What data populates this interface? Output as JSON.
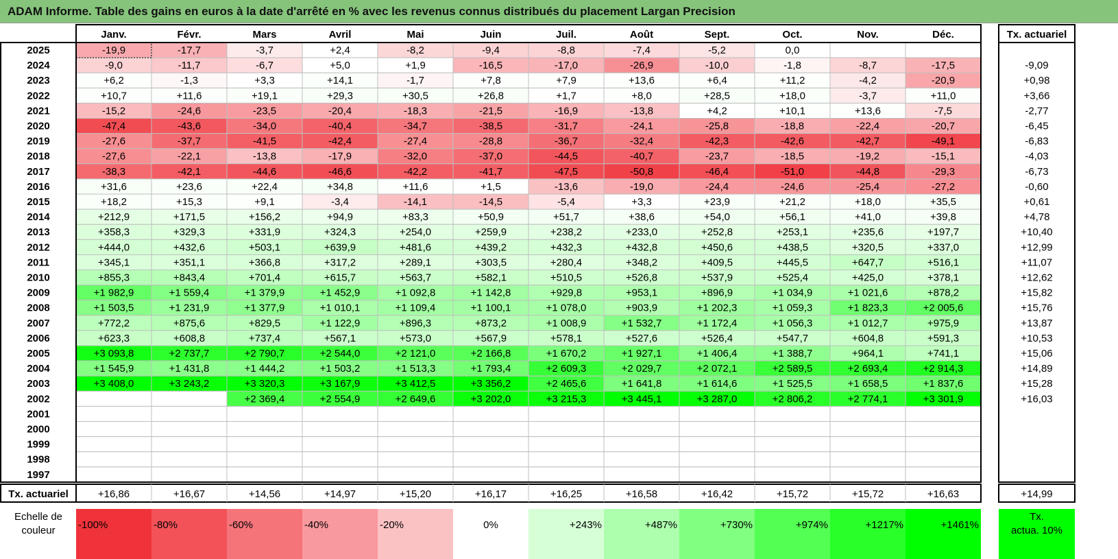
{
  "title": "ADAM Informe. Table des gains en euros à la date d'arrêté en % avec les revenus connus distribués du placement Largan Precision",
  "chart_data": {
    "type": "heatmap",
    "months": [
      "Janv.",
      "Févr.",
      "Mars",
      "Avril",
      "Mai",
      "Juin",
      "Juil.",
      "Août",
      "Sept.",
      "Oct.",
      "Nov.",
      "Déc."
    ],
    "actuarial_header": "Tx. actuariel",
    "rows": [
      {
        "year": "2025",
        "values": [
          "-19,9",
          "-17,7",
          "-3,7",
          "+2,4",
          "-8,2",
          "-9,4",
          "-8,8",
          "-7,4",
          "-5,2",
          "0,0",
          "",
          ""
        ],
        "rate": ""
      },
      {
        "year": "2024",
        "values": [
          "-9,0",
          "-11,7",
          "-6,7",
          "+5,0",
          "+1,9",
          "-16,5",
          "-17,0",
          "-26,9",
          "-10,0",
          "-1,8",
          "-8,7",
          "-17,5"
        ],
        "rate": "-9,09"
      },
      {
        "year": "2023",
        "values": [
          "+6,2",
          "-1,3",
          "+3,3",
          "+14,1",
          "-1,7",
          "+7,8",
          "+7,9",
          "+13,6",
          "+6,4",
          "+11,2",
          "-4,2",
          "-20,9"
        ],
        "rate": "+0,98"
      },
      {
        "year": "2022",
        "values": [
          "+10,7",
          "+11,6",
          "+19,1",
          "+29,3",
          "+30,5",
          "+26,8",
          "+1,7",
          "+8,0",
          "+28,5",
          "+18,0",
          "-3,7",
          "+11,0"
        ],
        "rate": "+3,66"
      },
      {
        "year": "2021",
        "values": [
          "-15,2",
          "-24,6",
          "-23,5",
          "-20,4",
          "-18,3",
          "-21,5",
          "-16,9",
          "-13,8",
          "+4,2",
          "+10,1",
          "+13,6",
          "-7,5"
        ],
        "rate": "-2,77"
      },
      {
        "year": "2020",
        "values": [
          "-47,4",
          "-43,6",
          "-34,0",
          "-40,4",
          "-34,7",
          "-38,5",
          "-31,7",
          "-24,1",
          "-25,8",
          "-18,8",
          "-22,4",
          "-20,7"
        ],
        "rate": "-6,45"
      },
      {
        "year": "2019",
        "values": [
          "-27,6",
          "-37,7",
          "-41,5",
          "-42,4",
          "-27,4",
          "-28,8",
          "-36,7",
          "-32,4",
          "-42,3",
          "-42,6",
          "-42,7",
          "-49,1"
        ],
        "rate": "-6,83"
      },
      {
        "year": "2018",
        "values": [
          "-27,6",
          "-22,1",
          "-13,8",
          "-17,9",
          "-32,0",
          "-37,0",
          "-44,5",
          "-40,7",
          "-23,7",
          "-18,5",
          "-19,2",
          "-15,1"
        ],
        "rate": "-4,03"
      },
      {
        "year": "2017",
        "values": [
          "-38,3",
          "-42,1",
          "-44,6",
          "-46,6",
          "-42,2",
          "-41,7",
          "-47,5",
          "-50,8",
          "-46,4",
          "-51,0",
          "-44,8",
          "-29,3"
        ],
        "rate": "-6,73"
      },
      {
        "year": "2016",
        "values": [
          "+31,6",
          "+23,6",
          "+22,4",
          "+34,8",
          "+11,6",
          "+1,5",
          "-13,6",
          "-19,0",
          "-24,4",
          "-24,6",
          "-25,4",
          "-27,2"
        ],
        "rate": "-0,60"
      },
      {
        "year": "2015",
        "values": [
          "+18,2",
          "+15,3",
          "+9,1",
          "-3,4",
          "-14,1",
          "-14,5",
          "-5,4",
          "+3,3",
          "+23,9",
          "+21,2",
          "+18,0",
          "+35,5"
        ],
        "rate": "+0,61"
      },
      {
        "year": "2014",
        "values": [
          "+212,9",
          "+171,5",
          "+156,2",
          "+94,9",
          "+83,3",
          "+50,9",
          "+51,7",
          "+38,6",
          "+54,0",
          "+56,1",
          "+41,0",
          "+39,8"
        ],
        "rate": "+4,78"
      },
      {
        "year": "2013",
        "values": [
          "+358,3",
          "+329,3",
          "+331,9",
          "+324,3",
          "+254,0",
          "+259,9",
          "+238,2",
          "+233,0",
          "+252,8",
          "+253,1",
          "+235,6",
          "+197,7"
        ],
        "rate": "+10,40"
      },
      {
        "year": "2012",
        "values": [
          "+444,0",
          "+432,6",
          "+503,1",
          "+639,9",
          "+481,6",
          "+439,2",
          "+432,3",
          "+432,8",
          "+450,6",
          "+438,5",
          "+320,5",
          "+337,0"
        ],
        "rate": "+12,99"
      },
      {
        "year": "2011",
        "values": [
          "+345,1",
          "+351,1",
          "+366,8",
          "+317,2",
          "+289,1",
          "+303,5",
          "+280,4",
          "+348,2",
          "+409,5",
          "+445,5",
          "+647,7",
          "+516,1"
        ],
        "rate": "+11,07"
      },
      {
        "year": "2010",
        "values": [
          "+855,3",
          "+843,4",
          "+701,4",
          "+615,7",
          "+563,7",
          "+582,1",
          "+510,5",
          "+526,8",
          "+537,9",
          "+525,4",
          "+425,0",
          "+378,1"
        ],
        "rate": "+12,62"
      },
      {
        "year": "2009",
        "values": [
          "+1 982,9",
          "+1 559,4",
          "+1 379,9",
          "+1 452,9",
          "+1 092,8",
          "+1 142,8",
          "+929,8",
          "+953,1",
          "+896,9",
          "+1 034,9",
          "+1 021,6",
          "+878,2"
        ],
        "rate": "+15,82"
      },
      {
        "year": "2008",
        "values": [
          "+1 503,5",
          "+1 231,9",
          "+1 377,9",
          "+1 010,1",
          "+1 109,4",
          "+1 100,1",
          "+1 078,0",
          "+903,9",
          "+1 202,3",
          "+1 059,3",
          "+1 823,3",
          "+2 005,6"
        ],
        "rate": "+15,76"
      },
      {
        "year": "2007",
        "values": [
          "+772,2",
          "+875,6",
          "+829,5",
          "+1 122,9",
          "+896,3",
          "+873,2",
          "+1 008,9",
          "+1 532,7",
          "+1 172,4",
          "+1 056,3",
          "+1 012,7",
          "+975,9"
        ],
        "rate": "+13,87"
      },
      {
        "year": "2006",
        "values": [
          "+623,3",
          "+608,8",
          "+737,4",
          "+567,1",
          "+573,0",
          "+567,9",
          "+578,1",
          "+527,6",
          "+526,4",
          "+547,7",
          "+604,8",
          "+591,3"
        ],
        "rate": "+10,53"
      },
      {
        "year": "2005",
        "values": [
          "+3 093,8",
          "+2 737,7",
          "+2 790,7",
          "+2 544,0",
          "+2 121,0",
          "+2 166,8",
          "+1 670,2",
          "+1 927,1",
          "+1 406,4",
          "+1 388,7",
          "+964,1",
          "+741,1"
        ],
        "rate": "+15,06"
      },
      {
        "year": "2004",
        "values": [
          "+1 545,9",
          "+1 431,8",
          "+1 444,2",
          "+1 503,2",
          "+1 513,3",
          "+1 793,4",
          "+2 609,3",
          "+2 029,7",
          "+2 072,1",
          "+2 589,5",
          "+2 693,4",
          "+2 914,3"
        ],
        "rate": "+14,89"
      },
      {
        "year": "2003",
        "values": [
          "+3 408,0",
          "+3 243,2",
          "+3 320,3",
          "+3 167,9",
          "+3 412,5",
          "+3 356,2",
          "+2 465,6",
          "+1 641,8",
          "+1 614,6",
          "+1 525,5",
          "+1 658,5",
          "+1 837,6"
        ],
        "rate": "+15,28"
      },
      {
        "year": "2002",
        "values": [
          "",
          "",
          "+2 369,4",
          "+2 554,9",
          "+2 649,6",
          "+3 202,0",
          "+3 215,3",
          "+3 445,1",
          "+3 287,0",
          "+2 806,2",
          "+2 774,1",
          "+3 301,9"
        ],
        "rate": "+16,03"
      },
      {
        "year": "2001",
        "values": [
          "",
          "",
          "",
          "",
          "",
          "",
          "",
          "",
          "",
          "",
          "",
          ""
        ],
        "rate": ""
      },
      {
        "year": "2000",
        "values": [
          "",
          "",
          "",
          "",
          "",
          "",
          "",
          "",
          "",
          "",
          "",
          ""
        ],
        "rate": ""
      },
      {
        "year": "1999",
        "values": [
          "",
          "",
          "",
          "",
          "",
          "",
          "",
          "",
          "",
          "",
          "",
          ""
        ],
        "rate": ""
      },
      {
        "year": "1998",
        "values": [
          "",
          "",
          "",
          "",
          "",
          "",
          "",
          "",
          "",
          "",
          "",
          ""
        ],
        "rate": ""
      },
      {
        "year": "1997",
        "values": [
          "",
          "",
          "",
          "",
          "",
          "",
          "",
          "",
          "",
          "",
          "",
          ""
        ],
        "rate": ""
      }
    ],
    "footer": {
      "label": "Tx. actuariel",
      "values": [
        "+16,86",
        "+16,67",
        "+14,56",
        "+14,97",
        "+15,20",
        "+16,17",
        "+16,25",
        "+16,58",
        "+16,42",
        "+15,72",
        "+15,72",
        "+16,63"
      ],
      "total": "+14,99"
    },
    "scale": {
      "label_line1": "Echelle de",
      "label_line2": "couleur",
      "negative": [
        "-100%",
        "-80%",
        "-60%",
        "-40%",
        "-20%"
      ],
      "zero": "0%",
      "positive": [
        "+243%",
        "+487%",
        "+730%",
        "+974%",
        "+1217%",
        "+1461%"
      ],
      "corner_line1": "Tx.",
      "corner_line2": "actua. 10%"
    },
    "colors": {
      "title_bg": "#86c47c",
      "negative_max": "#f0333b",
      "positive_max": "#00ff00",
      "neutral": "#ffffff"
    }
  }
}
